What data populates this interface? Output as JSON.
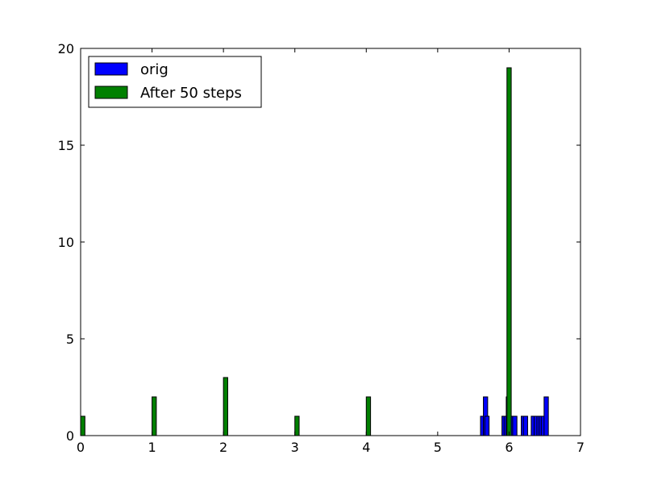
{
  "chart_data": {
    "type": "histogram",
    "title": "",
    "xlabel": "",
    "ylabel": "",
    "xlim": [
      0,
      7
    ],
    "ylim": [
      0,
      20
    ],
    "xticks": [
      0,
      1,
      2,
      3,
      4,
      5,
      6,
      7
    ],
    "yticks": [
      0,
      5,
      10,
      15,
      20
    ],
    "grid": false,
    "legend_position": "top-left",
    "bin_width": 0.06,
    "series": [
      {
        "name": "orig",
        "color": "#0000ff",
        "bars": [
          {
            "x": 5.6,
            "y": 1
          },
          {
            "x": 5.64,
            "y": 2
          },
          {
            "x": 5.66,
            "y": 1
          },
          {
            "x": 5.9,
            "y": 1
          },
          {
            "x": 5.93,
            "y": 1
          },
          {
            "x": 5.96,
            "y": 2
          },
          {
            "x": 5.99,
            "y": 1
          },
          {
            "x": 6.02,
            "y": 1
          },
          {
            "x": 6.05,
            "y": 1
          },
          {
            "x": 6.17,
            "y": 1
          },
          {
            "x": 6.2,
            "y": 1
          },
          {
            "x": 6.31,
            "y": 1
          },
          {
            "x": 6.35,
            "y": 1
          },
          {
            "x": 6.39,
            "y": 1
          },
          {
            "x": 6.42,
            "y": 1
          },
          {
            "x": 6.45,
            "y": 1
          },
          {
            "x": 6.49,
            "y": 2
          }
        ]
      },
      {
        "name": "After 50 steps",
        "color": "#008000",
        "bars": [
          {
            "x": 0.0,
            "y": 1
          },
          {
            "x": 1.0,
            "y": 2
          },
          {
            "x": 2.0,
            "y": 3
          },
          {
            "x": 3.0,
            "y": 1
          },
          {
            "x": 4.0,
            "y": 2
          },
          {
            "x": 5.97,
            "y": 19
          }
        ]
      }
    ]
  }
}
